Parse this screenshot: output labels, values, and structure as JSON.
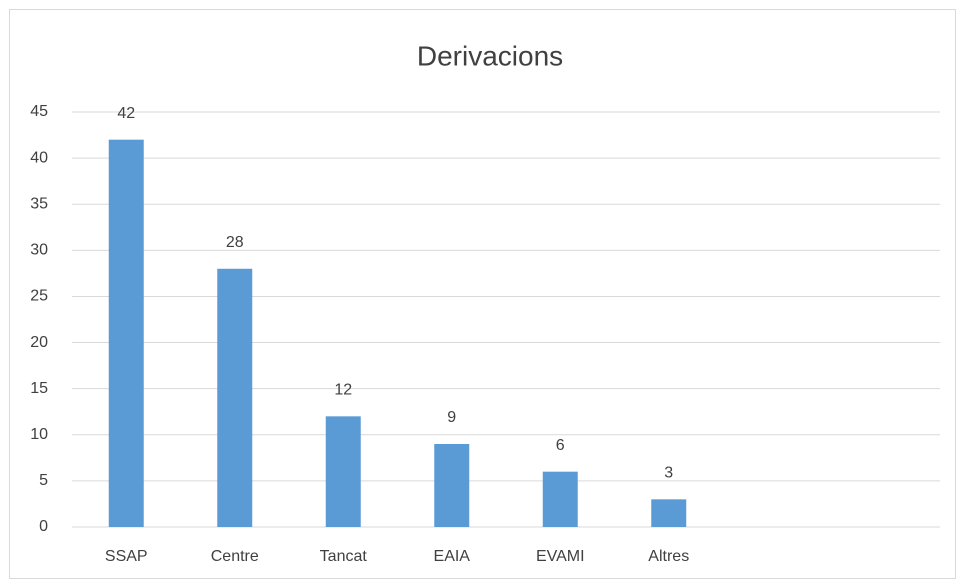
{
  "chart_data": {
    "type": "bar",
    "title": "Derivacions",
    "categories": [
      "SSAP",
      "Centre",
      "Tancat",
      "EAIA",
      "EVAMI",
      "Altres",
      null,
      null
    ],
    "values": [
      42,
      28,
      12,
      9,
      6,
      3,
      null,
      null
    ],
    "color": "#5b9bd5",
    "ylim": [
      0,
      45
    ],
    "yticks": [
      0,
      5,
      10,
      15,
      20,
      25,
      30,
      35,
      40,
      45
    ],
    "grid": true
  }
}
